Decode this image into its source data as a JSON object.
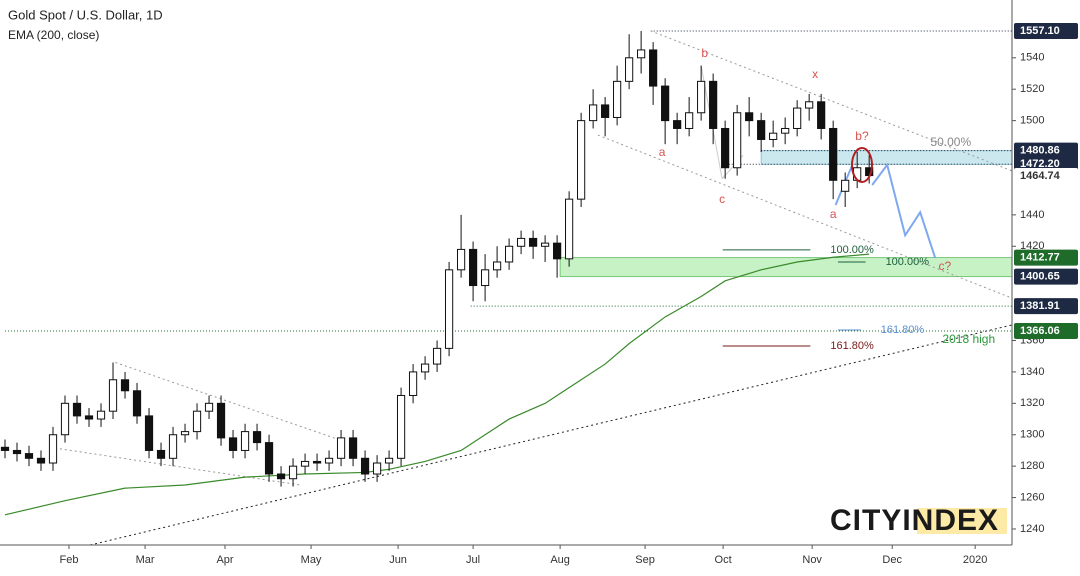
{
  "chart_data": {
    "type": "candlestick",
    "title": "Gold Spot / U.S. Dollar, 1D",
    "subtitle": "EMA (200, close)",
    "logo": "CITYINDEX",
    "xlim": [
      0,
      83.9
    ],
    "ylim": [
      1229.8,
      1576.8
    ],
    "xticks": [
      {
        "value": 5.33,
        "label": "Feb"
      },
      {
        "value": 11.67,
        "label": "Mar"
      },
      {
        "value": 18.33,
        "label": "Apr"
      },
      {
        "value": 25.5,
        "label": "May"
      },
      {
        "value": 32.75,
        "label": "Jun"
      },
      {
        "value": 39,
        "label": "Jul"
      },
      {
        "value": 46.25,
        "label": "Aug"
      },
      {
        "value": 53.33,
        "label": "Sep"
      },
      {
        "value": 59.83,
        "label": "Oct"
      },
      {
        "value": 67.25,
        "label": "Nov"
      },
      {
        "value": 73.92,
        "label": "Dec"
      },
      {
        "value": 80.83,
        "label": "2020"
      }
    ],
    "yticks": [
      1240,
      1260,
      1280,
      1300,
      1320,
      1340,
      1360,
      1420,
      1440,
      1500,
      1520,
      1540
    ],
    "up_color": "#ffffff",
    "down_color": "#111111",
    "wick_color": "#111111",
    "open": [
      1292,
      1290,
      1288,
      1285,
      1282,
      1300,
      1320,
      1312,
      1310,
      1315,
      1335,
      1328,
      1312,
      1290,
      1285,
      1300,
      1302,
      1315,
      1320,
      1298,
      1290,
      1302,
      1295,
      1275,
      1272,
      1280,
      1283,
      1282,
      1285,
      1298,
      1285,
      1275,
      1282,
      1285,
      1325,
      1340,
      1345,
      1355,
      1405,
      1418,
      1395,
      1405,
      1410,
      1420,
      1425,
      1420,
      1422,
      1412,
      1450,
      1500,
      1510,
      1502,
      1525,
      1540,
      1545,
      1522,
      1500,
      1495,
      1505,
      1525,
      1495,
      1470,
      1505,
      1500,
      1488,
      1492,
      1495,
      1508,
      1512,
      1495,
      1455,
      1462,
      1470
    ],
    "high": [
      1297,
      1295,
      1293,
      1290,
      1305,
      1325,
      1325,
      1317,
      1320,
      1346,
      1340,
      1333,
      1317,
      1295,
      1305,
      1307,
      1320,
      1325,
      1325,
      1303,
      1307,
      1307,
      1300,
      1280,
      1285,
      1288,
      1288,
      1290,
      1303,
      1303,
      1290,
      1287,
      1290,
      1330,
      1345,
      1350,
      1360,
      1410,
      1440,
      1423,
      1415,
      1420,
      1425,
      1430,
      1430,
      1427,
      1427,
      1455,
      1505,
      1520,
      1515,
      1535,
      1555,
      1557.1,
      1550,
      1527,
      1505,
      1515,
      1535,
      1530,
      1500,
      1510,
      1515,
      1505,
      1500,
      1502,
      1513,
      1517,
      1517,
      1500,
      1467,
      1480,
      1478
    ],
    "low": [
      1285,
      1283,
      1280,
      1277,
      1277,
      1295,
      1307,
      1305,
      1305,
      1310,
      1323,
      1307,
      1285,
      1280,
      1280,
      1295,
      1297,
      1310,
      1293,
      1285,
      1285,
      1290,
      1270,
      1267,
      1267,
      1275,
      1277,
      1277,
      1280,
      1280,
      1270,
      1270,
      1277,
      1280,
      1320,
      1335,
      1340,
      1350,
      1400,
      1385,
      1385,
      1400,
      1405,
      1415,
      1412,
      1410,
      1400,
      1407,
      1445,
      1495,
      1490,
      1497,
      1520,
      1530,
      1510,
      1485,
      1485,
      1490,
      1500,
      1485,
      1463,
      1465,
      1490,
      1480,
      1483,
      1485,
      1490,
      1500,
      1488,
      1450,
      1445,
      1457,
      1460
    ],
    "close": [
      1290,
      1288,
      1285,
      1282,
      1300,
      1320,
      1312,
      1310,
      1315,
      1335,
      1328,
      1312,
      1290,
      1285,
      1300,
      1302,
      1315,
      1320,
      1298,
      1290,
      1302,
      1295,
      1275,
      1272,
      1280,
      1283,
      1282,
      1285,
      1298,
      1285,
      1275,
      1282,
      1285,
      1325,
      1340,
      1345,
      1355,
      1405,
      1418,
      1395,
      1405,
      1410,
      1420,
      1425,
      1420,
      1422,
      1412,
      1450,
      1500,
      1510,
      1502,
      1525,
      1540,
      1545,
      1522,
      1500,
      1495,
      1505,
      1525,
      1495,
      1470,
      1505,
      1500,
      1488,
      1492,
      1495,
      1508,
      1512,
      1495,
      1462,
      1462,
      1470,
      1465
    ],
    "series": [
      {
        "name": "EMA (200, close)",
        "color": "#3a8a2a",
        "x": [
          0,
          5,
          10,
          15,
          20,
          25,
          30,
          32,
          35,
          38,
          40,
          42,
          45,
          47,
          50,
          52,
          55,
          58,
          60,
          63,
          66,
          69,
          72
        ],
        "values": [
          1249,
          1258,
          1266,
          1268,
          1273,
          1275,
          1276,
          1278,
          1283,
          1290,
          1300,
          1310,
          1320,
          1330,
          1345,
          1358,
          1375,
          1388,
          1398,
          1405,
          1410,
          1413,
          1415
        ]
      }
    ],
    "zones": [
      {
        "from": 1472.2,
        "to": 1480.86,
        "start": 63,
        "color": "#bfe3ec",
        "edge": "#5aa7c0"
      },
      {
        "from": 1400.65,
        "to": 1412.77,
        "start": 46.25,
        "color": "#b8f0b8",
        "edge": "#3aaa3a"
      }
    ],
    "levels": [
      {
        "value": 1557.1,
        "label": "1557.10",
        "fill": "#1e2a44",
        "text_color": "#ffffff",
        "start": 53.8,
        "line_color": "#1e2a44"
      },
      {
        "value": 1480.86,
        "label": "1480.86",
        "fill": "#1e2a44",
        "text_color": "#ffffff",
        "start": 63,
        "line_color": "#1e2a44"
      },
      {
        "value": 1472.2,
        "label": "1472.20",
        "fill": "#1e2a44",
        "text_color": "#ffffff",
        "start": 59.8,
        "line_color": "#1e2a44"
      },
      {
        "value": 1464.74,
        "label": "1464.74",
        "fill": "#ffffff",
        "text_color": "#333333",
        "start": null,
        "line_color": null
      },
      {
        "value": 1412.77,
        "label": "1412.77",
        "fill": "#1e6b2a",
        "text_color": "#ffffff",
        "start": null,
        "line_color": null
      },
      {
        "value": 1400.65,
        "label": "1400.65",
        "fill": "#1e2a44",
        "text_color": "#ffffff",
        "start": null,
        "line_color": null
      },
      {
        "value": 1381.91,
        "label": "1381.91",
        "fill": "#1e2a44",
        "text_color": "#ffffff",
        "start": 38.8,
        "line_color": "#1e6b2a"
      },
      {
        "value": 1366.06,
        "label": "1366.06",
        "fill": "#1e6b2a",
        "text_color": "#ffffff",
        "start": 0,
        "line_color": "#1e6b2a"
      }
    ],
    "lines": [
      {
        "x": [
          53.8,
          83.9
        ],
        "y": [
          1557.1,
          1468
        ],
        "color": "#999999",
        "dash": "2,3"
      },
      {
        "x": [
          49.4,
          83.9
        ],
        "y": [
          1490.8,
          1387
        ],
        "color": "#999999",
        "dash": "2,3"
      },
      {
        "x": [
          7.1,
          83.9
        ],
        "y": [
          1229.8,
          1369.9
        ],
        "color": "#222222",
        "dash": "2,3"
      },
      {
        "x": [
          9.2,
          27.9
        ],
        "y": [
          1346,
          1296.7
        ],
        "color": "#999999",
        "dash": "2,3"
      },
      {
        "x": [
          3.75,
          24.6
        ],
        "y": [
          1292,
          1268
        ],
        "color": "#999999",
        "dash": "2,3"
      },
      {
        "x": [
          58,
          59.75
        ],
        "y": [
          1535,
          1463
        ],
        "color": "#cccccc",
        "dash": ""
      },
      {
        "x": [
          59.75,
          61.5
        ],
        "y": [
          1463,
          1478
        ],
        "color": "#cccccc",
        "dash": ""
      },
      {
        "x": [
          69.2,
          70.6
        ],
        "y": [
          1446.3,
          1471.8
        ],
        "color": "#7fa8f0",
        "dash": ""
      },
      {
        "x": [
          72.25,
          73.5,
          75,
          76.25,
          77.5
        ],
        "y": [
          1459,
          1471.8,
          1427,
          1441.6,
          1412.6
        ],
        "color": "#7fa8f0",
        "dash": ""
      }
    ],
    "fibs": [
      {
        "label": "100.00%",
        "value": 1417.7,
        "from": 59.8,
        "to": 67.1,
        "color": "#1f5f3f"
      },
      {
        "label": "100.00%",
        "value": 1410,
        "from": 69.4,
        "to": 71.7,
        "color": "#1f5f3f"
      },
      {
        "label": "161.80%",
        "value": 1366.7,
        "from": 69.4,
        "to": 71.3,
        "color": "#5a8fd0"
      },
      {
        "label": "161.80%",
        "value": 1356.5,
        "from": 59.8,
        "to": 67.1,
        "color": "#7a1a1a"
      }
    ],
    "annotations": [
      {
        "text": "b",
        "x": 58.3,
        "y": 1542.5,
        "color": "#d9534f"
      },
      {
        "text": "a",
        "x": 54.75,
        "y": 1479.4,
        "color": "#d9534f"
      },
      {
        "text": "c",
        "x": 59.75,
        "y": 1449.5,
        "color": "#d9534f"
      },
      {
        "text": "x",
        "x": 67.5,
        "y": 1529,
        "color": "#d9534f"
      },
      {
        "text": "a",
        "x": 69,
        "y": 1440,
        "color": "#d9534f"
      },
      {
        "text": "b?",
        "x": 71.4,
        "y": 1489.6,
        "color": "#d9534f"
      },
      {
        "text": "c?",
        "x": 78.3,
        "y": 1406.8,
        "color": "#d9534f"
      },
      {
        "text": "50.00%",
        "x": 78.8,
        "y": 1485.8,
        "color": "#888888"
      },
      {
        "text": "2018 high",
        "x": 80.3,
        "y": 1360.5,
        "color": "#2a9a3a"
      }
    ]
  }
}
